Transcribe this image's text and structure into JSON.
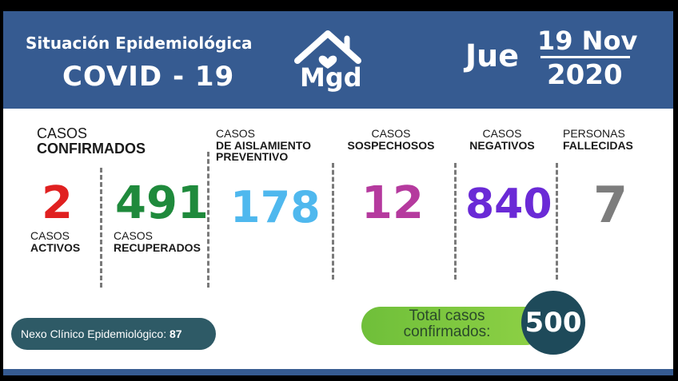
{
  "header": {
    "line1": "Situación Epidemiológica",
    "line2": "COVID - 19",
    "logo_text": "Mgd",
    "day": "Jue",
    "date_line1": "19 Nov",
    "date_line2": "2020"
  },
  "confirmados": {
    "label_a": "CASOS",
    "label_b": "CONFIRMADOS",
    "activos": {
      "value": "2",
      "label_a": "CASOS",
      "label_b": "ACTIVOS"
    },
    "recuperados": {
      "value": "491",
      "label_a": "CASOS",
      "label_b": "RECUPERADOS"
    }
  },
  "aislamiento": {
    "label_a": "CASOS",
    "label_b": "DE AISLAMIENTO",
    "label_c": "PREVENTIVO",
    "value": "178"
  },
  "sospechosos": {
    "label_a": "CASOS",
    "label_b": "SOSPECHOSOS",
    "value": "12"
  },
  "negativos": {
    "label_a": "CASOS",
    "label_b": "NEGATIVOS",
    "value": "840"
  },
  "fallecidas": {
    "label_a": "PERSONAS",
    "label_b": "FALLECIDAS",
    "value": "7"
  },
  "nexo": {
    "label": "Nexo Clínico Epidemiológico:",
    "value": "87"
  },
  "total": {
    "label_line1": "Total casos",
    "label_line2": "confirmados:",
    "value": "500"
  },
  "colors": {
    "header_bg": "#365b91",
    "activos": "#e02020",
    "recuperados": "#1f8a3c",
    "aislamiento": "#4fb8ee",
    "sospechosos": "#b53a9e",
    "negativos": "#6a2ad6",
    "fallecidas": "#7d7d7d"
  }
}
